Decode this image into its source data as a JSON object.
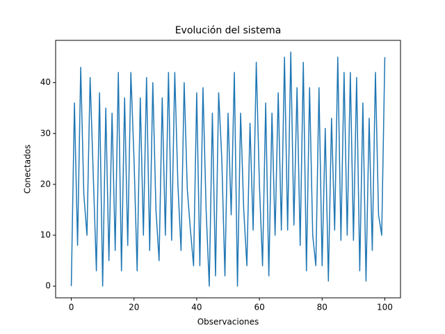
{
  "chart_data": {
    "type": "line",
    "title": "Evolución del sistema",
    "x_label": "Observaciones",
    "y_label": "Conectados",
    "x": [
      0,
      1,
      2,
      3,
      4,
      5,
      6,
      7,
      8,
      9,
      10,
      11,
      12,
      13,
      14,
      15,
      16,
      17,
      18,
      19,
      20,
      21,
      22,
      23,
      24,
      25,
      26,
      27,
      28,
      29,
      30,
      31,
      32,
      33,
      34,
      35,
      36,
      37,
      38,
      39,
      40,
      41,
      42,
      43,
      44,
      45,
      46,
      47,
      48,
      49,
      50,
      51,
      52,
      53,
      54,
      55,
      56,
      57,
      58,
      59,
      60,
      61,
      62,
      63,
      64,
      65,
      66,
      67,
      68,
      69,
      70,
      71,
      72,
      73,
      74,
      75,
      76,
      77,
      78,
      79,
      80,
      81,
      82,
      83,
      84,
      85,
      86,
      87,
      88,
      89,
      90,
      91,
      92,
      93,
      94,
      95,
      96,
      97,
      98,
      99,
      100
    ],
    "series": [
      {
        "color": "#1f77b4",
        "values": [
          0,
          36,
          8,
          43,
          18,
          10,
          41,
          22,
          3,
          38,
          0,
          35,
          5,
          34,
          7,
          42,
          3,
          37,
          8,
          42,
          25,
          3,
          37,
          10,
          41,
          7,
          40,
          15,
          5,
          37,
          10,
          42,
          9,
          42,
          20,
          7,
          40,
          19,
          11,
          4,
          38,
          4,
          39,
          15,
          0,
          34,
          2,
          38,
          25,
          2,
          34,
          14,
          42,
          0,
          34,
          15,
          4,
          32,
          11,
          44,
          20,
          4,
          36,
          2,
          34,
          10,
          38,
          11,
          45,
          11,
          46,
          12,
          39,
          8,
          44,
          3,
          39,
          10,
          4,
          39,
          4,
          31,
          1,
          33,
          11,
          45,
          9,
          42,
          10,
          42,
          9,
          41,
          3,
          36,
          1,
          33,
          7,
          42,
          14,
          10,
          45
        ]
      }
    ],
    "xlim": [
      -5,
      105
    ],
    "ylim": [
      -2.3,
      48.3
    ],
    "xticks": [
      0,
      20,
      40,
      60,
      80,
      100
    ],
    "yticks": [
      0,
      10,
      20,
      30,
      40
    ]
  }
}
